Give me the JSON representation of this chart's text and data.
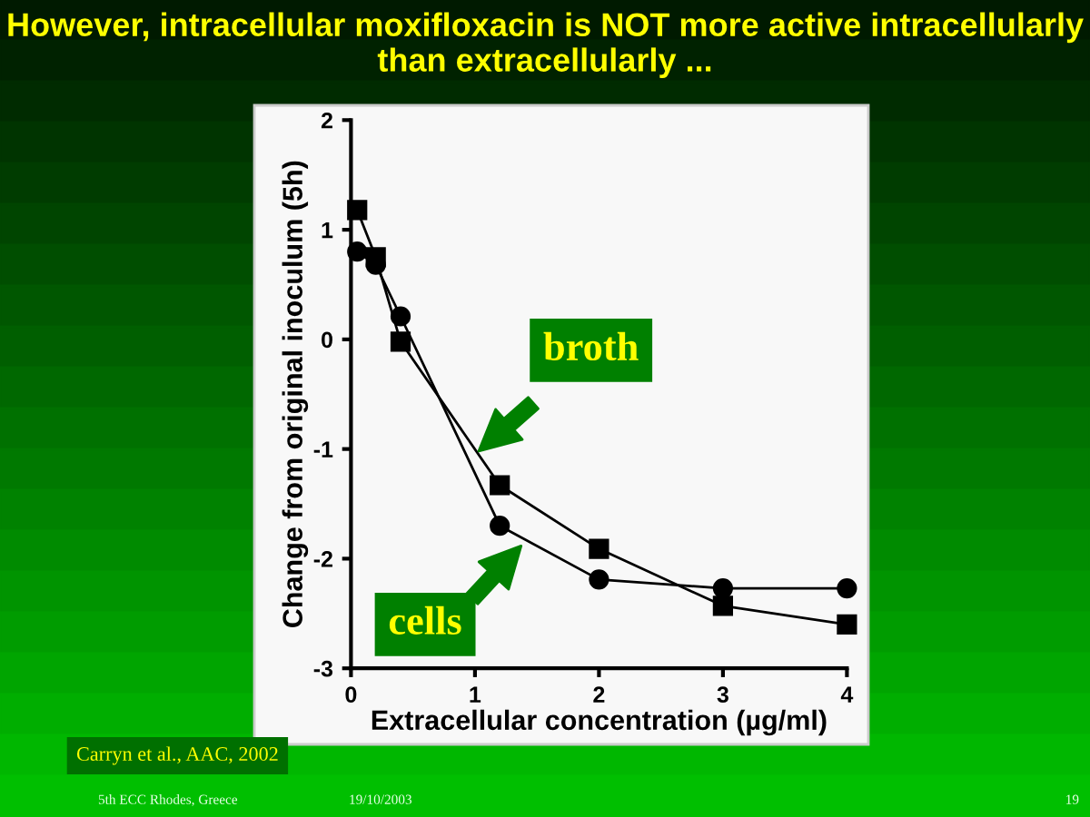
{
  "chart_data": {
    "type": "line",
    "title": "However, intracellular moxifloxacin is NOT more active intracellularly than extracellularly ...",
    "xlabel": "Extracellular concentration (µg/ml)",
    "ylabel": "Change from original inoculum (5h)",
    "series": [
      {
        "name": "broth",
        "color": "#000000",
        "marker": "square",
        "x": [
          0.05,
          0.2,
          0.4,
          1.2,
          2,
          3,
          4
        ],
        "values": [
          1.18,
          0.75,
          -0.02,
          -1.33,
          -1.91,
          -2.43,
          -2.6
        ]
      },
      {
        "name": "cells",
        "color": "#000000",
        "marker": "circle",
        "x": [
          0.05,
          0.2,
          0.4,
          1.2,
          2,
          3,
          4
        ],
        "values": [
          0.8,
          0.68,
          0.21,
          -1.7,
          -2.19,
          -2.27,
          -2.27
        ]
      }
    ],
    "xlim": [
      0,
      4
    ],
    "xticks": [
      0,
      1,
      2,
      3,
      4
    ],
    "ylim": [
      -3,
      2
    ],
    "yticks": [
      -3,
      -2,
      -1,
      0,
      1,
      2
    ],
    "grid": false,
    "legend": false,
    "line_style": "solid",
    "annotations": [
      "Carryn et al., AAC, 2002",
      "5th ECC Rhodes, Greece",
      "19/10/2003",
      "19"
    ]
  }
}
